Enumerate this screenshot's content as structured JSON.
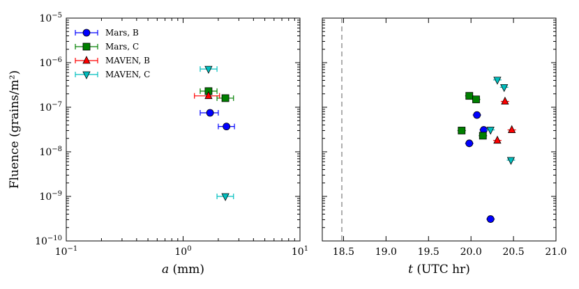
{
  "chart_data": [
    {
      "type": "scatter",
      "xscale": "log",
      "yscale": "log",
      "xlim": [
        0.1,
        10
      ],
      "ylim": [
        1e-10,
        1e-05
      ],
      "xlabel_italic": "a",
      "xlabel_rest": " (mm)",
      "ylabel": "Fluence (grains/m²)",
      "xticks": [
        {
          "value": 0.1,
          "base": "10",
          "exp": "−1"
        },
        {
          "value": 1,
          "base": "10",
          "exp": "0"
        },
        {
          "value": 10,
          "base": "10",
          "exp": "1"
        }
      ],
      "yticks": [
        {
          "value": 1e-10,
          "base": "10",
          "exp": "−10"
        },
        {
          "value": 1e-09,
          "base": "10",
          "exp": "−9"
        },
        {
          "value": 1e-08,
          "base": "10",
          "exp": "−8"
        },
        {
          "value": 1e-07,
          "base": "10",
          "exp": "−7"
        },
        {
          "value": 1e-06,
          "base": "10",
          "exp": "−6"
        },
        {
          "value": 1e-05,
          "base": "10",
          "exp": "−5"
        }
      ],
      "legend": {
        "position": "top-left"
      },
      "series": [
        {
          "name": "Mars, B",
          "color": "#0000ff",
          "marker": "circle",
          "points": [
            {
              "x": 1.7,
              "y": 7.5e-08,
              "xerr": [
                1.4,
                2.0
              ]
            },
            {
              "x": 2.35,
              "y": 3.7e-08,
              "xerr": [
                2.0,
                2.75
              ]
            }
          ]
        },
        {
          "name": "Mars, C",
          "color": "#008000",
          "marker": "square",
          "points": [
            {
              "x": 1.65,
              "y": 2.3e-07,
              "xerr": [
                1.4,
                1.95
              ]
            },
            {
              "x": 2.3,
              "y": 1.6e-07,
              "xerr": [
                1.95,
                2.7
              ]
            }
          ]
        },
        {
          "name": "MAVEN, B",
          "color": "#ff0000",
          "marker": "triangle-up",
          "points": [
            {
              "x": 1.65,
              "y": 1.8e-07,
              "xerr": [
                1.25,
                2.05
              ]
            }
          ]
        },
        {
          "name": "MAVEN, C",
          "color": "#00bfbf",
          "marker": "triangle-down",
          "points": [
            {
              "x": 1.65,
              "y": 7.2e-07,
              "xerr": [
                1.4,
                1.95
              ]
            },
            {
              "x": 2.3,
              "y": 1e-09,
              "xerr": [
                1.95,
                2.7
              ]
            }
          ]
        }
      ]
    },
    {
      "type": "scatter",
      "xscale": "linear",
      "yscale": "log",
      "xlim": [
        18.25,
        21.0
      ],
      "ylim": [
        1e-10,
        1e-05
      ],
      "xlabel_italic": "t",
      "xlabel_rest": " (UTC hr)",
      "xticks": [
        "18.5",
        "19.0",
        "19.5",
        "20.0",
        "20.5",
        "21.0"
      ],
      "vline": 18.48,
      "series": [
        {
          "name": "Mars, B",
          "color": "#0000ff",
          "marker": "circle",
          "points": [
            {
              "x": 20.07,
              "y": 6.7e-08
            },
            {
              "x": 20.15,
              "y": 3.1e-08
            },
            {
              "x": 19.98,
              "y": 1.55e-08
            },
            {
              "x": 20.23,
              "y": 3.1e-10
            }
          ]
        },
        {
          "name": "Mars, C",
          "color": "#008000",
          "marker": "square",
          "points": [
            {
              "x": 19.98,
              "y": 1.8e-07
            },
            {
              "x": 20.06,
              "y": 1.5e-07
            },
            {
              "x": 19.89,
              "y": 3e-08
            },
            {
              "x": 20.14,
              "y": 2.3e-08
            }
          ]
        },
        {
          "name": "MAVEN, B",
          "color": "#ff0000",
          "marker": "triangle-up",
          "points": [
            {
              "x": 20.4,
              "y": 1.35e-07
            },
            {
              "x": 20.48,
              "y": 3.1e-08
            },
            {
              "x": 20.31,
              "y": 1.8e-08
            }
          ]
        },
        {
          "name": "MAVEN, C",
          "color": "#00bfbf",
          "marker": "triangle-down",
          "points": [
            {
              "x": 20.31,
              "y": 4.1e-07
            },
            {
              "x": 20.39,
              "y": 2.8e-07
            },
            {
              "x": 20.23,
              "y": 3.1e-08
            },
            {
              "x": 20.47,
              "y": 6.5e-09
            }
          ]
        }
      ]
    }
  ]
}
